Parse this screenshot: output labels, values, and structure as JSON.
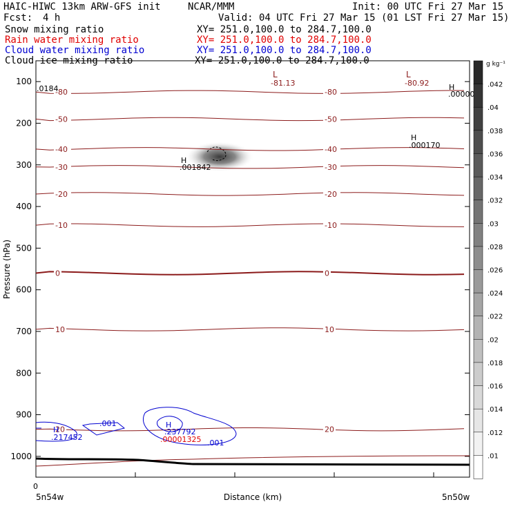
{
  "header": {
    "title_left": "HAIC-HIWC 13km ARW-GFS init",
    "title_center": "NCAR/MMM",
    "init": "Init: 00 UTC Fri 27 Mar 15",
    "fcst_label": "Fcst:",
    "fcst_value": "4 h",
    "valid": "Valid: 04 UTC Fri 27 Mar 15 (01 LST Fri 27 Mar 15)",
    "fields": [
      {
        "name": "Snow mixing ratio",
        "xy": "XY= 251.0,100.0 to 284.7,100.0",
        "color": "#000000"
      },
      {
        "name": "Rain water mixing ratio",
        "xy": "XY= 251.0,100.0 to 284.7,100.0",
        "color": "#e00000"
      },
      {
        "name": "Cloud water mixing ratio",
        "xy": "XY= 251.0,100.0 to 284.7,100.0",
        "color": "#0000d0"
      },
      {
        "name": "Cloud ice mixing ratio",
        "xy": "XY= 251.0,100.0 to 284.7,100.0",
        "color": "#000000"
      }
    ]
  },
  "chart_data": {
    "type": "contour",
    "xlabel": "Distance (km)",
    "ylabel": "Pressure (hPa)",
    "x_tick_labels": [
      "0",
      "5n54w",
      "5n50w"
    ],
    "y_ticks": [
      100,
      200,
      300,
      400,
      500,
      600,
      700,
      800,
      900,
      1000
    ],
    "ylim": [
      1050,
      50
    ],
    "temperature_contours": [
      {
        "label": "-80",
        "pressure": 125
      },
      {
        "label": "-50",
        "pressure": 190
      },
      {
        "label": "-40",
        "pressure": 262
      },
      {
        "label": "-30",
        "pressure": 305
      },
      {
        "label": "-20",
        "pressure": 370
      },
      {
        "label": "-10",
        "pressure": 445
      },
      {
        "label": "0",
        "pressure": 560
      },
      {
        "label": "10",
        "pressure": 695
      },
      {
        "label": "20",
        "pressure": 935
      }
    ],
    "extrema": [
      {
        "type": "L",
        "value": "-81.13",
        "color": "#8b0000"
      },
      {
        "type": "L",
        "value": "-80.92",
        "color": "#8b0000"
      },
      {
        "type": "H",
        "value": ".0184",
        "color": "#000000"
      },
      {
        "type": "H",
        "value": ".00000",
        "color": "#000000"
      },
      {
        "type": "H",
        "value": ".000170",
        "color": "#000000"
      },
      {
        "type": "H",
        "value": ".001842",
        "color": "#000000"
      },
      {
        "type": "H",
        "value": ".217452",
        "color": "#0000d0"
      },
      {
        "type": "H",
        "value": ".237792",
        "color": "#0000d0"
      },
      {
        "type": "H",
        "value": ".00001325",
        "color": "#e00000"
      }
    ],
    "cloud_water_labels": [
      ".001",
      ".001"
    ],
    "colorbar": {
      "unit": "g kg⁻¹",
      "labels": [
        ".042",
        ".04",
        ".038",
        ".036",
        ".034",
        ".032",
        ".03",
        ".028",
        ".026",
        ".024",
        ".022",
        ".02",
        ".018",
        ".016",
        ".014",
        ".012",
        ".01"
      ]
    },
    "colors": {
      "temperature": "#8b1a1a",
      "snow_shade": "#555555",
      "cloud_water": "#0000d0",
      "rain": "#e00000"
    }
  }
}
